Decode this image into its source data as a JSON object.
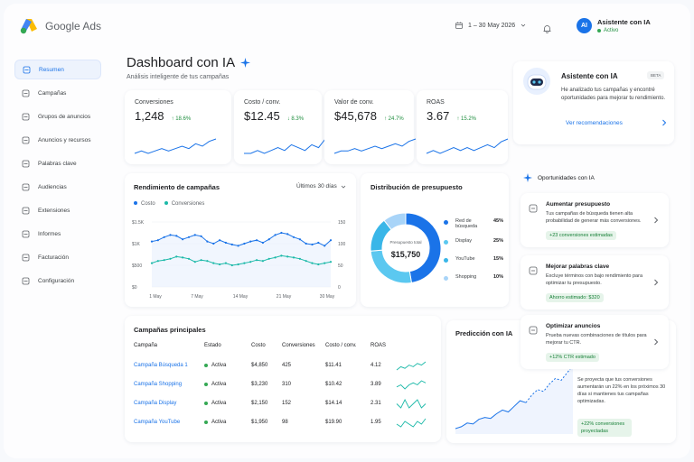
{
  "brand": {
    "name": "Google Ads"
  },
  "header": {
    "date_range": "1 – 30 May 2026",
    "user_initials": "AI",
    "user_name": "Asistente con IA",
    "user_status": "Activo"
  },
  "sidebar": {
    "items": [
      {
        "label": "Resumen",
        "icon": "home-icon",
        "active": true
      },
      {
        "label": "Campañas",
        "icon": "campaign-icon"
      },
      {
        "label": "Grupos de anuncios",
        "icon": "ad-groups-icon"
      },
      {
        "label": "Anuncios y recursos",
        "icon": "ads-icon"
      },
      {
        "label": "Palabras clave",
        "icon": "keyword-icon"
      },
      {
        "label": "Audiencias",
        "icon": "audience-icon"
      },
      {
        "label": "Extensiones",
        "icon": "extensions-icon"
      },
      {
        "label": "Informes",
        "icon": "reports-icon"
      },
      {
        "label": "Facturación",
        "icon": "billing-icon"
      },
      {
        "label": "Configuración",
        "icon": "gear-icon"
      }
    ]
  },
  "page": {
    "title": "Dashboard con IA",
    "subtitle": "Análisis inteligente de tus campañas"
  },
  "kpis": [
    {
      "label": "Conversiones",
      "value": "1,248",
      "delta": "↑ 18.6%"
    },
    {
      "label": "Costo / conv.",
      "value": "$12.45",
      "delta": "↓ 8.3%"
    },
    {
      "label": "Valor de conv.",
      "value": "$45,678",
      "delta": "↑ 24.7%"
    },
    {
      "label": "ROAS",
      "value": "3.67",
      "delta": "↑ 15.2%"
    }
  ],
  "performance": {
    "title": "Rendimiento de campañas",
    "period": "Últimos 30 días",
    "legend": [
      "Costo",
      "Conversiones"
    ]
  },
  "budget": {
    "title": "Distribución de presupuesto",
    "center_label": "Presupuesto total",
    "center_value": "$15,750",
    "items": [
      {
        "name": "Red de búsqueda",
        "value": "45%"
      },
      {
        "name": "Display",
        "value": "25%"
      },
      {
        "name": "YouTube",
        "value": "15%"
      },
      {
        "name": "Shopping",
        "value": "10%"
      }
    ]
  },
  "campaigns": {
    "title": "Campañas principales",
    "headers": [
      "Campaña",
      "Estado",
      "Costo",
      "Conversiones",
      "Costo / conv.",
      "ROAS"
    ],
    "rows": [
      {
        "name": "Campaña Búsqueda 1",
        "status": "Activa",
        "cost": "$4,850",
        "conv": "425",
        "cpc": "$11.41",
        "roas": "4.12"
      },
      {
        "name": "Campaña Shopping",
        "status": "Activa",
        "cost": "$3,230",
        "conv": "310",
        "cpc": "$10.42",
        "roas": "3.89"
      },
      {
        "name": "Campaña Display",
        "status": "Activa",
        "cost": "$2,150",
        "conv": "152",
        "cpc": "$14.14",
        "roas": "2.31"
      },
      {
        "name": "Campaña YouTube",
        "status": "Activa",
        "cost": "$1,950",
        "conv": "98",
        "cpc": "$19.90",
        "roas": "1.95"
      }
    ]
  },
  "ai_assistant": {
    "title": "Asistente con IA",
    "badge": "BETA",
    "text": "He analizado tus campañas y encontré oportunidades para mejorar tu rendimiento.",
    "link": "Ver recomendaciones"
  },
  "opportunities": {
    "title": "Oportunidades con IA",
    "items": [
      {
        "title": "Aumentar presupuesto",
        "text": "Tus campañas de búsqueda tienen alta probabilidad de generar más conversiones.",
        "badge": "+23 conversiones estimadas"
      },
      {
        "title": "Mejorar palabras clave",
        "text": "Excluye términos con bajo rendimiento para optimizar tu presupuesto.",
        "badge": "Ahorro estimado: $320"
      },
      {
        "title": "Optimizar anuncios",
        "text": "Prueba nuevas combinaciones de títulos para mejorar tu CTR.",
        "badge": "+12% CTR estimado"
      }
    ]
  },
  "prediction": {
    "title": "Predicción con IA",
    "text": "Se proyecta que tus conversiones aumentarán un 22% en los próximos 30 días si mantienes tus campañas optimizadas.",
    "badge": "+22% conversiones proyectadas"
  },
  "chart_data": [
    {
      "type": "line",
      "title": "Rendimiento de campañas",
      "x_ticks": [
        "1 May",
        "7 May",
        "14 May",
        "21 May",
        "30 May"
      ],
      "y_left_ticks": [
        "$1.5K",
        "$1K",
        "$500",
        "$0"
      ],
      "y_right_ticks": [
        "150",
        "100",
        "50",
        "0"
      ],
      "ylim_left": [
        0,
        1500
      ],
      "ylim_right": [
        0,
        150
      ],
      "series": [
        {
          "name": "Costo",
          "axis": "left",
          "color": "#1a73e8",
          "values": [
            1050,
            1080,
            1150,
            1200,
            1180,
            1100,
            1150,
            1200,
            1170,
            1050,
            1000,
            1080,
            1020,
            980,
            950,
            1000,
            1050,
            1080,
            1020,
            1100,
            1200,
            1250,
            1220,
            1150,
            1100,
            1000,
            980,
            1020,
            950,
            1080
          ]
        },
        {
          "name": "Conversiones",
          "axis": "right",
          "color": "#1bb9a8",
          "values": [
            55,
            60,
            62,
            65,
            70,
            68,
            65,
            58,
            62,
            60,
            55,
            52,
            55,
            50,
            52,
            55,
            58,
            62,
            60,
            65,
            68,
            72,
            70,
            68,
            65,
            60,
            55,
            52,
            55,
            58
          ]
        }
      ]
    },
    {
      "type": "pie",
      "title": "Distribución de presupuesto",
      "categories": [
        "Red de búsqueda",
        "Display",
        "YouTube",
        "Shopping"
      ],
      "values": [
        45,
        25,
        15,
        10
      ],
      "colors": [
        "#1a73e8",
        "#5bc8f0",
        "#39b6e8",
        "#a8d4f8"
      ]
    },
    {
      "type": "line",
      "title": "Predicción con IA",
      "series": [
        {
          "name": "",
          "values": [
            20,
            22,
            26,
            25,
            30,
            32,
            31,
            36,
            40,
            38,
            44,
            50,
            48,
            56,
            62,
            60,
            68,
            74,
            72,
            80,
            88
          ]
        }
      ]
    }
  ],
  "sparklines": [
    [
      3,
      4,
      3,
      4,
      5,
      4,
      5,
      6,
      5,
      7,
      6,
      8,
      9
    ],
    [
      3,
      3,
      4,
      3,
      4,
      5,
      4,
      6,
      5,
      4,
      6,
      5,
      8
    ],
    [
      2,
      3,
      3,
      4,
      3,
      4,
      5,
      4,
      5,
      6,
      5,
      7,
      8
    ],
    [
      3,
      4,
      3,
      4,
      5,
      4,
      5,
      4,
      5,
      6,
      5,
      7,
      8
    ]
  ],
  "row_sparklines": [
    [
      3,
      5,
      4,
      6,
      5,
      7,
      6,
      8
    ],
    [
      4,
      5,
      3,
      5,
      6,
      5,
      7,
      6
    ],
    [
      5,
      4,
      6,
      4,
      5,
      6,
      4,
      5
    ],
    [
      4,
      3,
      5,
      4,
      3,
      5,
      4,
      6
    ]
  ]
}
